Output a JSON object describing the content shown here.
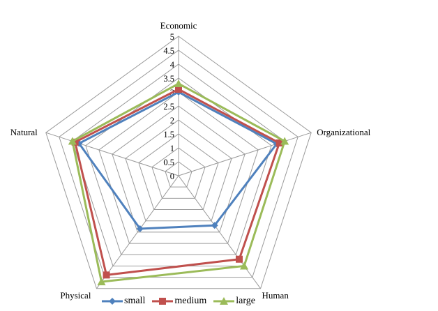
{
  "chart_data": {
    "type": "radar",
    "title": "",
    "axes": [
      "Economic",
      "Organizational",
      "Human",
      "Physical",
      "Natural"
    ],
    "ticks": [
      "0",
      "0.5",
      "1",
      "1.5",
      "2",
      "2.5",
      "3",
      "3.5",
      "4",
      "4.5",
      "5"
    ],
    "rmin": 0,
    "rmax": 5,
    "grid": true,
    "legend_position": "bottom",
    "series": [
      {
        "name": "small",
        "color": "#4F81BD",
        "marker": "diamond",
        "values": [
          3.0,
          3.7,
          2.2,
          2.35,
          3.75
        ]
      },
      {
        "name": "medium",
        "color": "#C0504D",
        "marker": "square",
        "values": [
          3.1,
          3.8,
          3.7,
          4.4,
          3.9
        ]
      },
      {
        "name": "large",
        "color": "#9BBB59",
        "marker": "triangle",
        "values": [
          3.3,
          4.0,
          4.0,
          4.7,
          4.0
        ]
      }
    ]
  },
  "legend": {
    "items": [
      {
        "label": "small",
        "color": "#4F81BD"
      },
      {
        "label": "medium",
        "color": "#C0504D"
      },
      {
        "label": "large",
        "color": "#9BBB59"
      }
    ]
  }
}
